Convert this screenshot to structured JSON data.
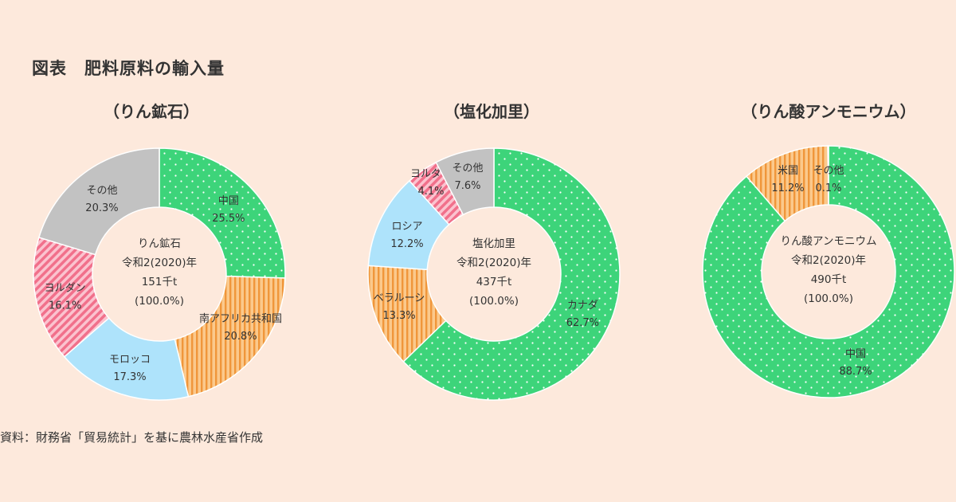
{
  "figure_title": "図表　肥料原料の輸入量",
  "source": "資料：財務省「貿易統計」を基に農林水産省作成",
  "colors": {
    "green": "#3dd47a",
    "orange": "#f8b46c",
    "orange_stripe": "#f08a2c",
    "blue": "#aee3fb",
    "pink": "#f57c95",
    "gray": "#c2c2c2",
    "background": "#fde9dc"
  },
  "chart_data": [
    {
      "type": "pie",
      "title": "（りん鉱石）",
      "center_lines": [
        "りん鉱石",
        "令和2(2020)年",
        "151千t",
        "(100.0%)"
      ],
      "slices": [
        {
          "label": "中国",
          "value": 25.5,
          "value_label": "25.5%",
          "pattern": "dots-green"
        },
        {
          "label": "南アフリカ共和国",
          "value": 20.8,
          "value_label": "20.8%",
          "pattern": "stripes-orange"
        },
        {
          "label": "モロッコ",
          "value": 17.3,
          "value_label": "17.3%",
          "pattern": "solid-blue"
        },
        {
          "label": "ヨルダン",
          "value": 16.1,
          "value_label": "16.1%",
          "pattern": "diag-pink"
        },
        {
          "label": "その他",
          "value": 20.3,
          "value_label": "20.3%",
          "pattern": "solid-gray"
        }
      ]
    },
    {
      "type": "pie",
      "title": "（塩化加里）",
      "center_lines": [
        "塩化加里",
        "令和2(2020)年",
        "437千t",
        "(100.0%)"
      ],
      "slices": [
        {
          "label": "カナダ",
          "value": 62.7,
          "value_label": "62.7%",
          "pattern": "dots-green"
        },
        {
          "label": "ベラルーシ",
          "value": 13.3,
          "value_label": "13.3%",
          "pattern": "stripes-orange"
        },
        {
          "label": "ロシア",
          "value": 12.2,
          "value_label": "12.2%",
          "pattern": "solid-blue"
        },
        {
          "label": "ヨルダン",
          "value": 4.1,
          "value_label": "4.1%",
          "pattern": "diag-pink"
        },
        {
          "label": "その他",
          "value": 7.6,
          "value_label": "7.6%",
          "pattern": "solid-gray"
        }
      ]
    },
    {
      "type": "pie",
      "title": "（りん酸アンモニウム）",
      "center_lines": [
        "りん酸アンモニウム",
        "令和2(2020)年",
        "490千t",
        "(100.0%)"
      ],
      "slices": [
        {
          "label": "中国",
          "value": 88.7,
          "value_label": "88.7%",
          "pattern": "dots-green"
        },
        {
          "label": "米国",
          "value": 11.2,
          "value_label": "11.2%",
          "pattern": "stripes-orange"
        },
        {
          "label": "その他",
          "value": 0.1,
          "value_label": "0.1%",
          "pattern": "solid-gray"
        }
      ]
    }
  ]
}
